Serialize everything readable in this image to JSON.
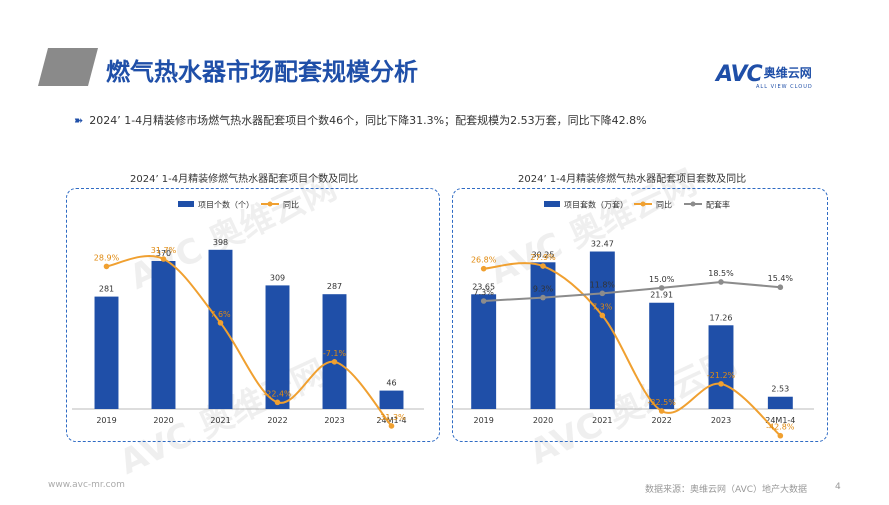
{
  "page": {
    "title": "燃气热水器市场配套规模分析",
    "summary": "2024’ 1-4月精装修市场燃气热水器配套项目个数46个，同比下降31.3%；配套规模为2.53万套，同比下降42.8%",
    "summary_icon": "double-arrow-icon",
    "logo": {
      "main": "AVC",
      "cn": "奥维云网",
      "sub": "ALL VIEW CLOUD"
    },
    "watermark": {
      "main": "AVC 奥维云网",
      "sub": "ALL VIEW CLOUD"
    },
    "footer_url": "www.avc-mr.com",
    "footer_source": "数据来源：奥维云网（AVC）地产大数据",
    "page_number": "4"
  },
  "colors": {
    "bar": "#1f4fa8",
    "yoy": "#f0a030",
    "rate": "#8c8c8c",
    "accent": "#1f4fa8"
  },
  "chart_data": [
    {
      "type": "bar",
      "title": "2024’ 1-4月精装修燃气热水器配套项目个数及同比",
      "categories": [
        "2019",
        "2020",
        "2021",
        "2022",
        "2023",
        "24M1-4"
      ],
      "series": [
        {
          "name": "项目个数（个）",
          "type": "bar",
          "values": [
            281,
            370,
            398,
            309,
            287,
            46
          ],
          "labels": [
            "281",
            "370",
            "398",
            "309",
            "287",
            "46"
          ]
        },
        {
          "name": "同比",
          "type": "line",
          "values": [
            28.9,
            31.7,
            7.6,
            -22.4,
            -7.1,
            -31.3
          ],
          "labels": [
            "28.9%",
            "31.7%",
            "7.6%",
            "-22.4%",
            "-7.1%",
            "-31.3%"
          ]
        }
      ],
      "legend": "top"
    },
    {
      "type": "bar",
      "title": "2024’ 1-4月精装修燃气热水器配套项目套数及同比",
      "categories": [
        "2019",
        "2020",
        "2021",
        "2022",
        "2023",
        "24M1-4"
      ],
      "series": [
        {
          "name": "项目套数（万套）",
          "type": "bar",
          "values": [
            23.65,
            30.25,
            32.47,
            21.91,
            17.26,
            2.53
          ],
          "labels": [
            "23.65",
            "30.25",
            "32.47",
            "21.91",
            "17.26",
            "2.53"
          ]
        },
        {
          "name": "同比",
          "type": "line",
          "values": [
            26.8,
            27.9,
            7.3,
            -32.5,
            -21.2,
            -42.8
          ],
          "labels": [
            "26.8%",
            "27.9%",
            "7.3%",
            "-32.5%",
            "-21.2%",
            "-42.8%"
          ]
        },
        {
          "name": "配套率",
          "type": "line",
          "values": [
            7.3,
            9.3,
            11.8,
            15.0,
            18.5,
            15.4
          ],
          "labels": [
            "7.3%",
            "9.3%",
            "11.8%",
            "15.0%",
            "18.5%",
            "15.4%"
          ]
        }
      ],
      "legend": "top"
    }
  ]
}
